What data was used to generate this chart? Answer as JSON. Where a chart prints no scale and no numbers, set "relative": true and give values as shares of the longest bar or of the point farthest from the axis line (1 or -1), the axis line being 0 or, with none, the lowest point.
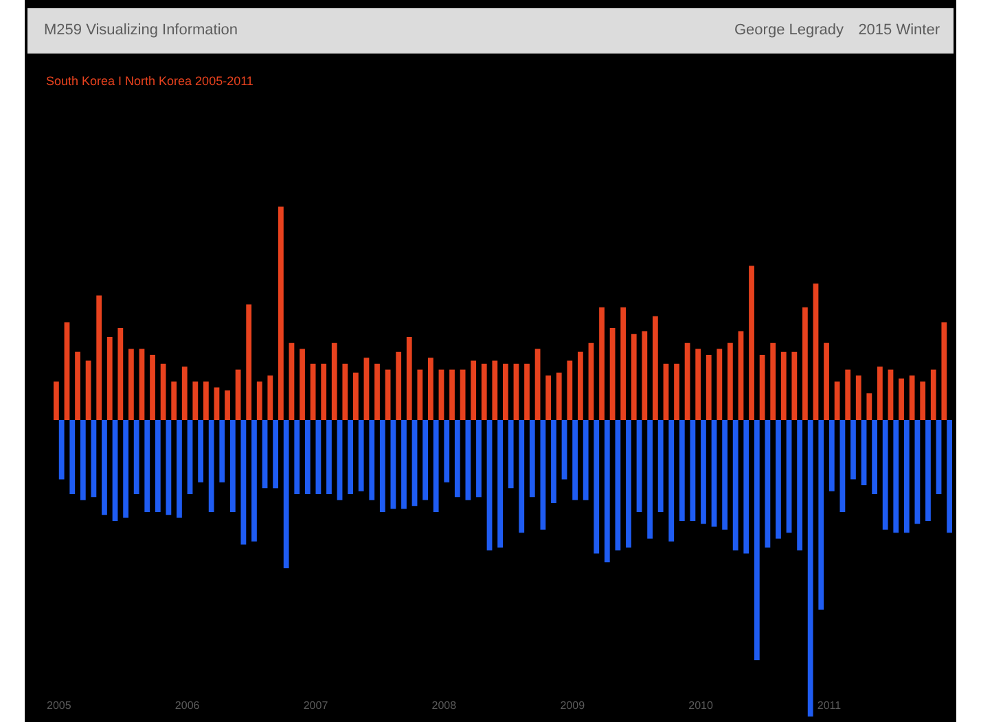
{
  "chart_data": {
    "type": "bar",
    "title": "South Korea I North Korea 2005-2011",
    "annotations": [
      "M259 Visualizing Information",
      "George Legrady",
      "2015 Winter"
    ],
    "relative": true,
    "categories": [
      "2005",
      null,
      null,
      null,
      null,
      null,
      null,
      null,
      null,
      null,
      null,
      null,
      "2006",
      null,
      null,
      null,
      null,
      null,
      null,
      null,
      null,
      null,
      null,
      null,
      "2007",
      null,
      null,
      null,
      null,
      null,
      null,
      null,
      null,
      null,
      null,
      null,
      "2008",
      null,
      null,
      null,
      null,
      null,
      null,
      null,
      null,
      null,
      null,
      null,
      "2009",
      null,
      null,
      null,
      null,
      null,
      null,
      null,
      null,
      null,
      null,
      null,
      "2010",
      null,
      null,
      null,
      null,
      null,
      null,
      null,
      null,
      null,
      null,
      null,
      "2011",
      null,
      null,
      null,
      null,
      null,
      null,
      null,
      null,
      null,
      null,
      null
    ],
    "series": [
      {
        "color": "#e8421e",
        "values": [
          0.13,
          0.33,
          0.23,
          0.2,
          0.42,
          0.28,
          0.31,
          0.24,
          0.24,
          0.22,
          0.19,
          0.13,
          0.18,
          0.13,
          0.13,
          0.11,
          0.1,
          0.17,
          0.39,
          0.13,
          0.15,
          0.72,
          0.26,
          0.24,
          0.19,
          0.19,
          0.26,
          0.19,
          0.16,
          0.21,
          0.19,
          0.17,
          0.23,
          0.28,
          0.17,
          0.21,
          0.17,
          0.17,
          0.17,
          0.2,
          0.19,
          0.2,
          0.19,
          0.19,
          0.19,
          0.24,
          0.15,
          0.16,
          0.2,
          0.23,
          0.26,
          0.38,
          0.31,
          0.38,
          0.29,
          0.3,
          0.35,
          0.19,
          0.19,
          0.26,
          0.24,
          0.22,
          0.24,
          0.26,
          0.3,
          0.52,
          0.22,
          0.26,
          0.23,
          0.23,
          0.38,
          0.46,
          0.26,
          0.13,
          0.17,
          0.15,
          0.09,
          0.18,
          0.17,
          0.14,
          0.15,
          0.13,
          0.17,
          0.33
        ]
      },
      {
        "color": "#1f5cf2",
        "values": [
          -0.2,
          -0.25,
          -0.27,
          -0.26,
          -0.32,
          -0.34,
          -0.33,
          -0.25,
          -0.31,
          -0.31,
          -0.32,
          -0.33,
          -0.25,
          -0.21,
          -0.31,
          -0.21,
          -0.31,
          -0.42,
          -0.41,
          -0.23,
          -0.23,
          -0.5,
          -0.25,
          -0.25,
          -0.25,
          -0.25,
          -0.27,
          -0.25,
          -0.24,
          -0.27,
          -0.31,
          -0.3,
          -0.3,
          -0.29,
          -0.27,
          -0.31,
          -0.21,
          -0.26,
          -0.27,
          -0.26,
          -0.44,
          -0.43,
          -0.23,
          -0.38,
          -0.26,
          -0.37,
          -0.28,
          -0.2,
          -0.27,
          -0.27,
          -0.45,
          -0.48,
          -0.44,
          -0.43,
          -0.31,
          -0.4,
          -0.31,
          -0.41,
          -0.34,
          -0.34,
          -0.35,
          -0.36,
          -0.37,
          -0.44,
          -0.45,
          -0.81,
          -0.43,
          -0.4,
          -0.38,
          -0.44,
          -1,
          -0.64,
          -0.24,
          -0.31,
          -0.2,
          -0.22,
          -0.25,
          -0.37,
          -0.38,
          -0.38,
          -0.35,
          -0.34,
          -0.25,
          -0.38
        ]
      }
    ]
  }
}
